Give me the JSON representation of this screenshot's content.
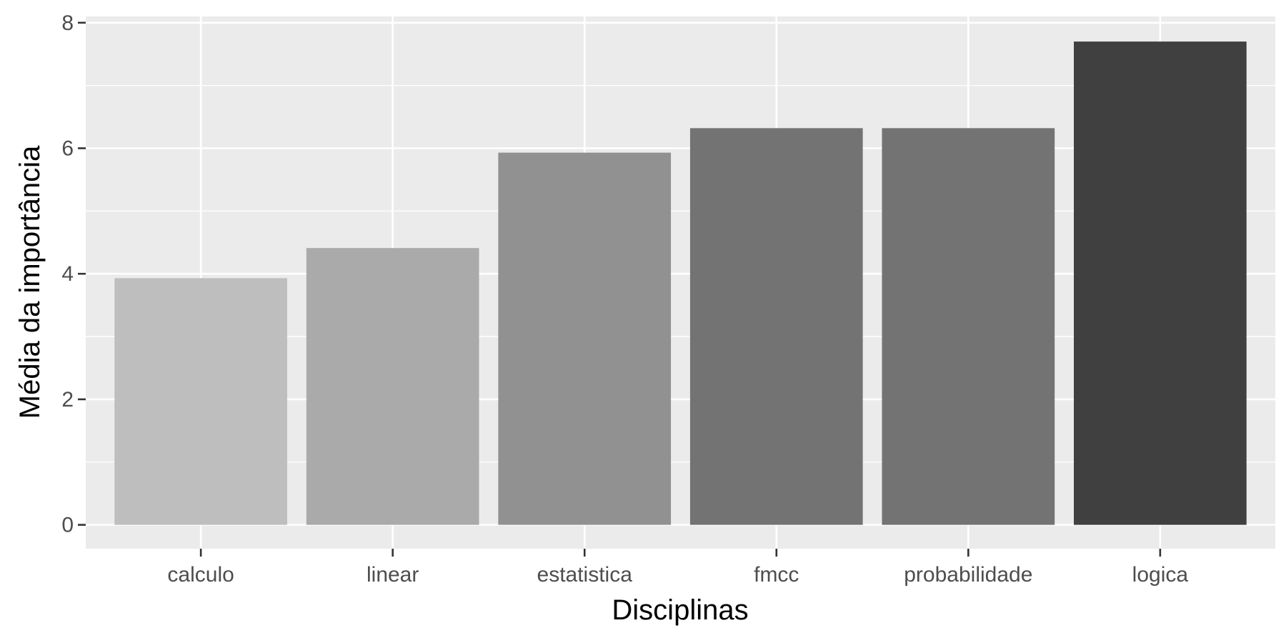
{
  "chart_data": {
    "type": "bar",
    "categories": [
      "calculo",
      "linear",
      "estatistica",
      "fmcc",
      "probabilidade",
      "logica"
    ],
    "values": [
      3.93,
      4.41,
      5.93,
      6.32,
      6.32,
      7.7
    ],
    "bar_colors": [
      "#bebebe",
      "#aaaaaa",
      "#919191",
      "#737373",
      "#737373",
      "#404040"
    ],
    "xlabel": "Disciplinas",
    "ylabel": "Média da importância",
    "ylim": [
      -0.38,
      8.1
    ],
    "yticks": [
      0,
      2,
      4,
      6,
      8
    ],
    "grid": true,
    "panel_background": "#ebebeb",
    "grid_color": "#ffffff"
  }
}
